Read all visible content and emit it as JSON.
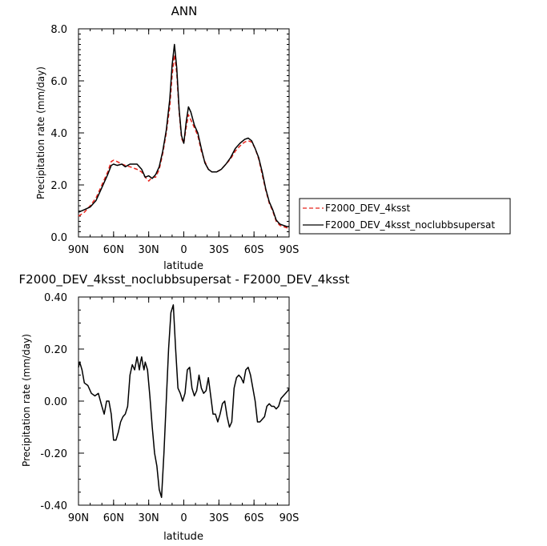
{
  "chart_data": [
    {
      "type": "line",
      "title": "ANN",
      "xlabel": "latitude",
      "ylabel": "Precipitation rate (mm/day)",
      "xlim": [
        90,
        -90
      ],
      "ylim": [
        0,
        8
      ],
      "x_ticks": [
        90,
        60,
        30,
        0,
        -30,
        -60,
        -90
      ],
      "x_tick_labels": [
        "90N",
        "60N",
        "30N",
        "0",
        "30S",
        "60S",
        "90S"
      ],
      "y_ticks": [
        0,
        2,
        4,
        6,
        8
      ],
      "y_tick_labels": [
        "0.0",
        "2.0",
        "4.0",
        "6.0",
        "8.0"
      ],
      "legend_position": "right",
      "series": [
        {
          "name": "F2000_DEV_4ksst",
          "color": "#e8241c",
          "dash": "dashed",
          "x": [
            90,
            85,
            80,
            75,
            70,
            65,
            62,
            60,
            57,
            53,
            50,
            46,
            43,
            40,
            36,
            33,
            30,
            27,
            24,
            21,
            18,
            15,
            12,
            10,
            8,
            6,
            4,
            2,
            0,
            -2,
            -4,
            -6,
            -9,
            -12,
            -15,
            -18,
            -21,
            -24,
            -28,
            -32,
            -36,
            -40,
            -44,
            -48,
            -52,
            -55,
            -58,
            -61,
            -64,
            -67,
            -70,
            -73,
            -76,
            -79,
            -82,
            -85,
            -88,
            -90
          ],
          "y": [
            0.8,
            0.95,
            1.2,
            1.5,
            2.0,
            2.5,
            2.9,
            2.95,
            2.9,
            2.8,
            2.75,
            2.7,
            2.65,
            2.6,
            2.5,
            2.3,
            2.15,
            2.3,
            2.3,
            2.6,
            3.2,
            4.0,
            5.0,
            6.2,
            7.0,
            6.3,
            4.8,
            3.8,
            3.6,
            4.2,
            4.7,
            4.5,
            4.2,
            3.9,
            3.3,
            2.9,
            2.6,
            2.5,
            2.5,
            2.6,
            2.8,
            3.0,
            3.3,
            3.5,
            3.65,
            3.7,
            3.65,
            3.4,
            3.0,
            2.4,
            1.8,
            1.3,
            1.0,
            0.6,
            0.45,
            0.4,
            0.35,
            0.35
          ]
        },
        {
          "name": "F2000_DEV_4ksst_noclubbsupersat",
          "color": "#000000",
          "dash": "solid",
          "x": [
            90,
            85,
            80,
            75,
            70,
            65,
            62,
            60,
            57,
            53,
            50,
            46,
            43,
            40,
            36,
            33,
            30,
            27,
            24,
            21,
            18,
            15,
            12,
            10,
            8,
            6,
            4,
            2,
            0,
            -2,
            -4,
            -6,
            -9,
            -12,
            -15,
            -18,
            -21,
            -24,
            -28,
            -32,
            -36,
            -40,
            -44,
            -48,
            -52,
            -55,
            -58,
            -61,
            -64,
            -67,
            -70,
            -73,
            -76,
            -79,
            -82,
            -85,
            -88,
            -90
          ],
          "y": [
            0.95,
            1.05,
            1.15,
            1.4,
            1.9,
            2.4,
            2.75,
            2.8,
            2.75,
            2.8,
            2.7,
            2.8,
            2.8,
            2.8,
            2.6,
            2.3,
            2.35,
            2.25,
            2.4,
            2.7,
            3.3,
            4.1,
            5.3,
            6.6,
            7.4,
            6.5,
            4.9,
            3.9,
            3.6,
            4.4,
            5.0,
            4.8,
            4.3,
            4.0,
            3.4,
            2.85,
            2.6,
            2.5,
            2.5,
            2.6,
            2.8,
            3.05,
            3.4,
            3.6,
            3.75,
            3.8,
            3.7,
            3.4,
            3.05,
            2.5,
            1.85,
            1.35,
            1.05,
            0.65,
            0.5,
            0.45,
            0.4,
            0.4
          ]
        }
      ]
    },
    {
      "type": "line",
      "title": "F2000_DEV_4ksst_noclubbsupersat - F2000_DEV_4ksst",
      "xlabel": "latitude",
      "ylabel": "Precipitation rate (mm/day)",
      "xlim": [
        90,
        -90
      ],
      "ylim": [
        -0.4,
        0.4
      ],
      "x_ticks": [
        90,
        60,
        30,
        0,
        -30,
        -60,
        -90
      ],
      "x_tick_labels": [
        "90N",
        "60N",
        "30N",
        "0",
        "30S",
        "60S",
        "90S"
      ],
      "y_ticks": [
        -0.4,
        -0.2,
        0,
        0.2,
        0.4
      ],
      "y_tick_labels": [
        "-0.40",
        "-0.20",
        "0.00",
        "0.20",
        "0.40"
      ],
      "series": [
        {
          "color": "#000000",
          "dash": "solid",
          "x": [
            90,
            89,
            87,
            85,
            82,
            79,
            76,
            73,
            70,
            68,
            66,
            64,
            62,
            60,
            58,
            56,
            54,
            52,
            50,
            48,
            46,
            44,
            42,
            40,
            38,
            37,
            36,
            35,
            34,
            33,
            31,
            29,
            27,
            25,
            23,
            21,
            19,
            17,
            15,
            13,
            11,
            9,
            7,
            5,
            3,
            1,
            -1,
            -3,
            -5,
            -7,
            -9,
            -11,
            -13,
            -15,
            -17,
            -19,
            -21,
            -23,
            -25,
            -27,
            -29,
            -31,
            -33,
            -35,
            -37,
            -39,
            -41,
            -43,
            -45,
            -47,
            -49,
            -51,
            -53,
            -55,
            -57,
            -59,
            -61,
            -63,
            -65,
            -67,
            -69,
            -71,
            -73,
            -75,
            -77,
            -79,
            -81,
            -83,
            -85,
            -87,
            -89,
            -90
          ],
          "y": [
            0.13,
            0.15,
            0.12,
            0.07,
            0.06,
            0.03,
            0.02,
            0.03,
            -0.02,
            -0.05,
            0.0,
            0.0,
            -0.05,
            -0.15,
            -0.15,
            -0.12,
            -0.08,
            -0.06,
            -0.05,
            -0.02,
            0.1,
            0.14,
            0.12,
            0.17,
            0.12,
            0.15,
            0.17,
            0.14,
            0.12,
            0.15,
            0.12,
            0.02,
            -0.1,
            -0.2,
            -0.25,
            -0.34,
            -0.37,
            -0.2,
            0.0,
            0.2,
            0.34,
            0.37,
            0.2,
            0.05,
            0.03,
            0.0,
            0.03,
            0.12,
            0.13,
            0.05,
            0.02,
            0.04,
            0.1,
            0.05,
            0.03,
            0.04,
            0.09,
            0.02,
            -0.05,
            -0.05,
            -0.08,
            -0.05,
            -0.01,
            0.0,
            -0.06,
            -0.1,
            -0.08,
            0.05,
            0.09,
            0.1,
            0.09,
            0.07,
            0.12,
            0.13,
            0.1,
            0.05,
            0.0,
            -0.08,
            -0.08,
            -0.07,
            -0.06,
            -0.02,
            -0.01,
            -0.02,
            -0.02,
            -0.03,
            -0.02,
            0.01,
            0.02,
            0.03,
            0.04,
            0.05
          ]
        }
      ]
    }
  ]
}
